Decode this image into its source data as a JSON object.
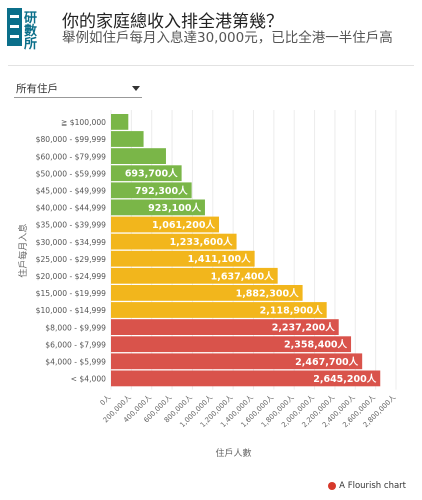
{
  "header": {
    "logo_text": "研數所",
    "title": "你的家庭總收入排全港第幾？",
    "subtitle": "舉例如住戶每月入息達30,000元，已比全港一半住戶高"
  },
  "filter": {
    "selected": "所有住戶"
  },
  "chart_data": {
    "type": "bar",
    "orientation": "horizontal",
    "ylabel": "住戶每月入息",
    "xlabel": "住戶人數",
    "xlim": [
      0,
      2800000
    ],
    "x_ticks": [
      "0人",
      "200,000人",
      "400,000人",
      "600,000人",
      "800,000人",
      "1,000,000人",
      "1,200,000人",
      "1,400,000人",
      "1,600,000人",
      "1,800,000人",
      "2,000,000人",
      "2,200,000人",
      "2,400,000人",
      "2,600,000人",
      "2,800,000人"
    ],
    "grid": true,
    "categories": [
      "≧ $100,000",
      "$80,000 - $99,999",
      "$60,000 - $79,999",
      "$50,000 - $59,999",
      "$45,000 - $49,999",
      "$40,000 - $44,999",
      "$35,000 - $39,999",
      "$30,000 - $34,999",
      "$25,000 - $29,999",
      "$20,000 - $24,999",
      "$15,000 - $19,999",
      "$10,000 - $14,999",
      "$8,000 - $9,999",
      "$6,000 - $7,999",
      "$4,000 - $5,999",
      "< $4,000"
    ],
    "values": [
      170000,
      320000,
      540000,
      693700,
      792300,
      923100,
      1061200,
      1233600,
      1411100,
      1637400,
      1882300,
      2118900,
      2237200,
      2358400,
      2467700,
      2645200
    ],
    "data_labels": [
      "",
      "",
      "",
      "693,700人",
      "792,300人",
      "923,100人",
      "1,061,200人",
      "1,233,600人",
      "1,411,100人",
      "1,637,400人",
      "1,882,300人",
      "2,118,900人",
      "2,237,200人",
      "2,358,400人",
      "2,467,700人",
      "2,645,200人"
    ],
    "colors": [
      "#7ab648",
      "#7ab648",
      "#7ab648",
      "#7ab648",
      "#7ab648",
      "#7ab648",
      "#f2b61c",
      "#f2b61c",
      "#f2b61c",
      "#f2b61c",
      "#f2b61c",
      "#f2b61c",
      "#d9534b",
      "#d9534b",
      "#d9534b",
      "#d9534b"
    ]
  },
  "footer": {
    "credit": "A Flourish chart"
  },
  "colors": {
    "green": "#7ab648",
    "yellow": "#f2b61c",
    "red": "#d9534b",
    "logo": "#0b6f8a"
  }
}
